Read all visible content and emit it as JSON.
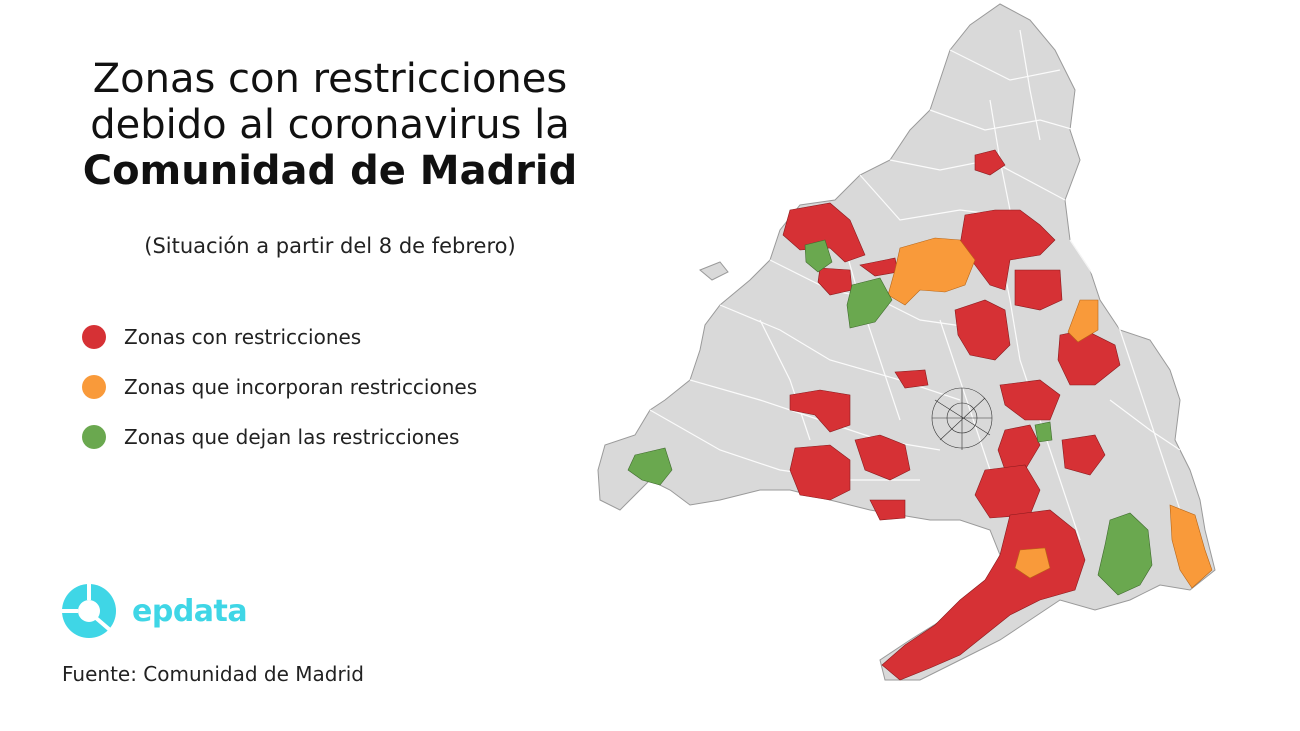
{
  "title": {
    "line1": "Zonas con restricciones",
    "line2": "debido al coronavirus la",
    "line3": "Comunidad de Madrid"
  },
  "subtitle": "(Situación a partir del 8 de febrero)",
  "legend": [
    {
      "label": "Zonas con restricciones",
      "color": "#d63135"
    },
    {
      "label": "Zonas que incorporan restricciones",
      "color": "#f99a3a"
    },
    {
      "label": "Zonas que dejan las restricciones",
      "color": "#6aa84f"
    }
  ],
  "logo": {
    "text": "epdata",
    "color": "#3fd6e6"
  },
  "source": "Fuente: Comunidad de Madrid",
  "map": {
    "base_color": "#d9d9d9",
    "border_color": "#ffffff",
    "region": "Comunidad de Madrid"
  }
}
